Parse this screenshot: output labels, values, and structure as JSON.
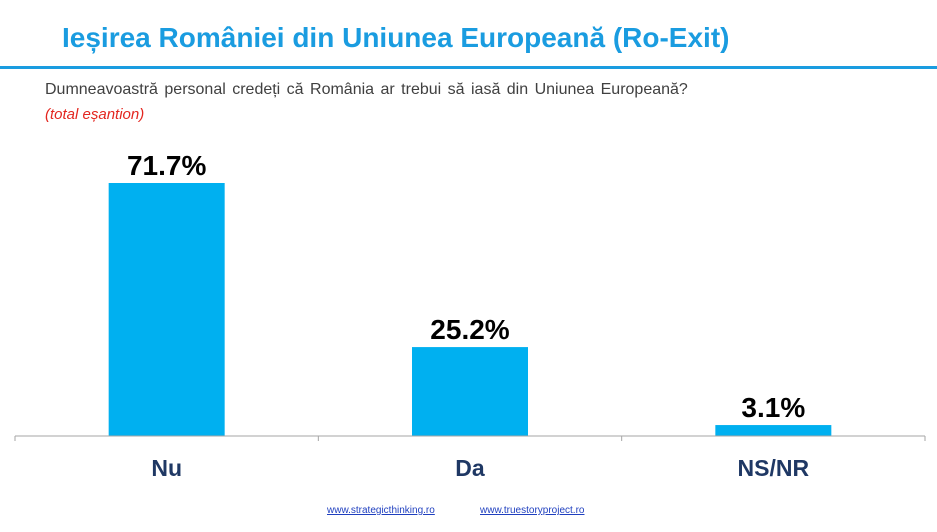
{
  "header": {
    "title": "Ieșirea României din Uniunea Europeană (Ro-Exit)",
    "question": "Dumneavoastră personal credeți că România ar trebui să iasă din Uniunea Europeană?",
    "sample_note": "(total eșantion)"
  },
  "colors": {
    "accent": "#1a9ce0",
    "bar": "#00b0f0",
    "category_label": "#1f3864",
    "note": "#e3261f",
    "link": "#1f3fbf"
  },
  "chart_data": {
    "type": "bar",
    "categories": [
      "Nu",
      "Da",
      "NS/NR"
    ],
    "values": [
      71.7,
      25.2,
      3.1
    ],
    "value_labels": [
      "71.7%",
      "25.2%",
      "3.1%"
    ],
    "title": "Ieșirea României din Uniunea Europeană (Ro-Exit)",
    "xlabel": "",
    "ylabel": "",
    "ylim": [
      0,
      100
    ],
    "grid": false,
    "legend": "none"
  },
  "footer": {
    "links": [
      "www.strategicthinking.ro",
      "www.truestoryproject.ro"
    ]
  }
}
